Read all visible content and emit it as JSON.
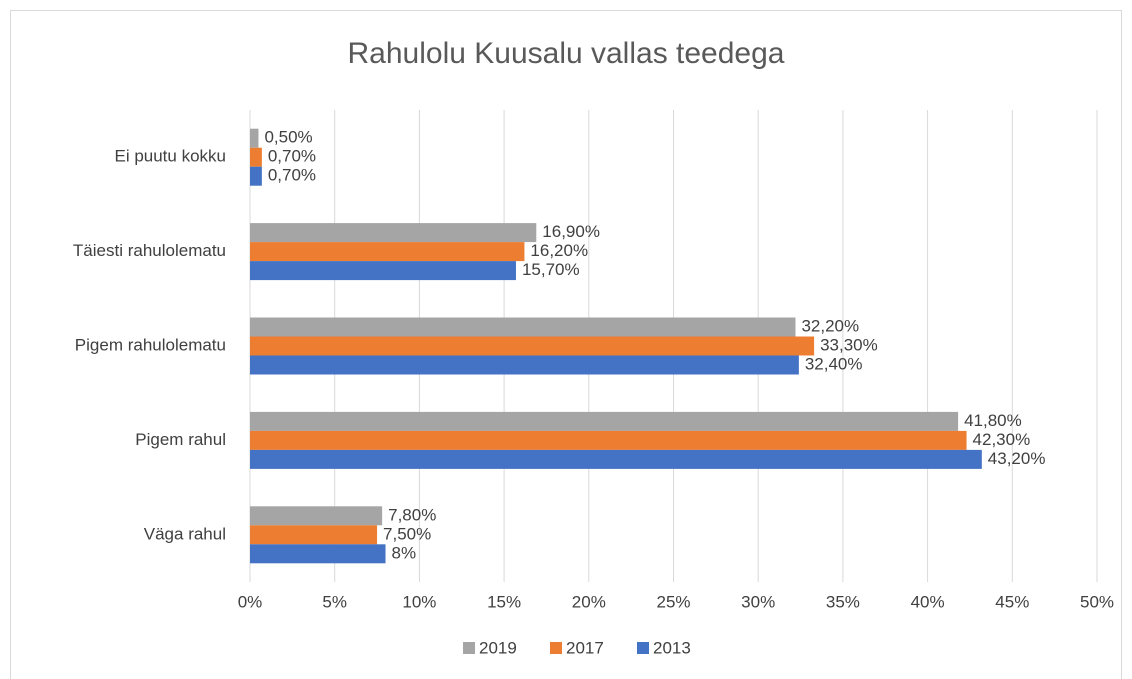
{
  "chart_data": {
    "type": "hbar",
    "title": "Rahulolu Kuusalu vallas teedega",
    "categories": [
      "Ei puutu kokku",
      "Täiesti rahulolematu",
      "Pigem rahulolematu",
      "Pigem rahul",
      "Väga rahul"
    ],
    "series": [
      {
        "name": "2019",
        "color": "#a5a5a5",
        "values": [
          0.5,
          16.9,
          32.2,
          41.8,
          7.8
        ],
        "value_labels": [
          "0,50%",
          "16,90%",
          "32,20%",
          "41,80%",
          "7,80%"
        ]
      },
      {
        "name": "2017",
        "color": "#ed7d31",
        "values": [
          0.7,
          16.2,
          33.3,
          42.3,
          7.5
        ],
        "value_labels": [
          "0,70%",
          "16,20%",
          "33,30%",
          "42,30%",
          "7,50%"
        ]
      },
      {
        "name": "2013",
        "color": "#4472c4",
        "values": [
          0.7,
          15.7,
          32.4,
          43.2,
          8
        ],
        "value_labels": [
          "0,70%",
          "15,70%",
          "32,40%",
          "43,20%",
          "8%"
        ]
      }
    ],
    "xlim": [
      0,
      50
    ],
    "xticks": [
      {
        "value": 0,
        "label": "0%"
      },
      {
        "value": 5,
        "label": "5%"
      },
      {
        "value": 10,
        "label": "10%"
      },
      {
        "value": 15,
        "label": "15%"
      },
      {
        "value": 20,
        "label": "20%"
      },
      {
        "value": 25,
        "label": "25%"
      },
      {
        "value": 30,
        "label": "30%"
      },
      {
        "value": 35,
        "label": "35%"
      },
      {
        "value": 40,
        "label": "40%"
      },
      {
        "value": 45,
        "label": "45%"
      },
      {
        "value": 50,
        "label": "50%"
      }
    ],
    "grid": true,
    "legend": "bottom"
  }
}
